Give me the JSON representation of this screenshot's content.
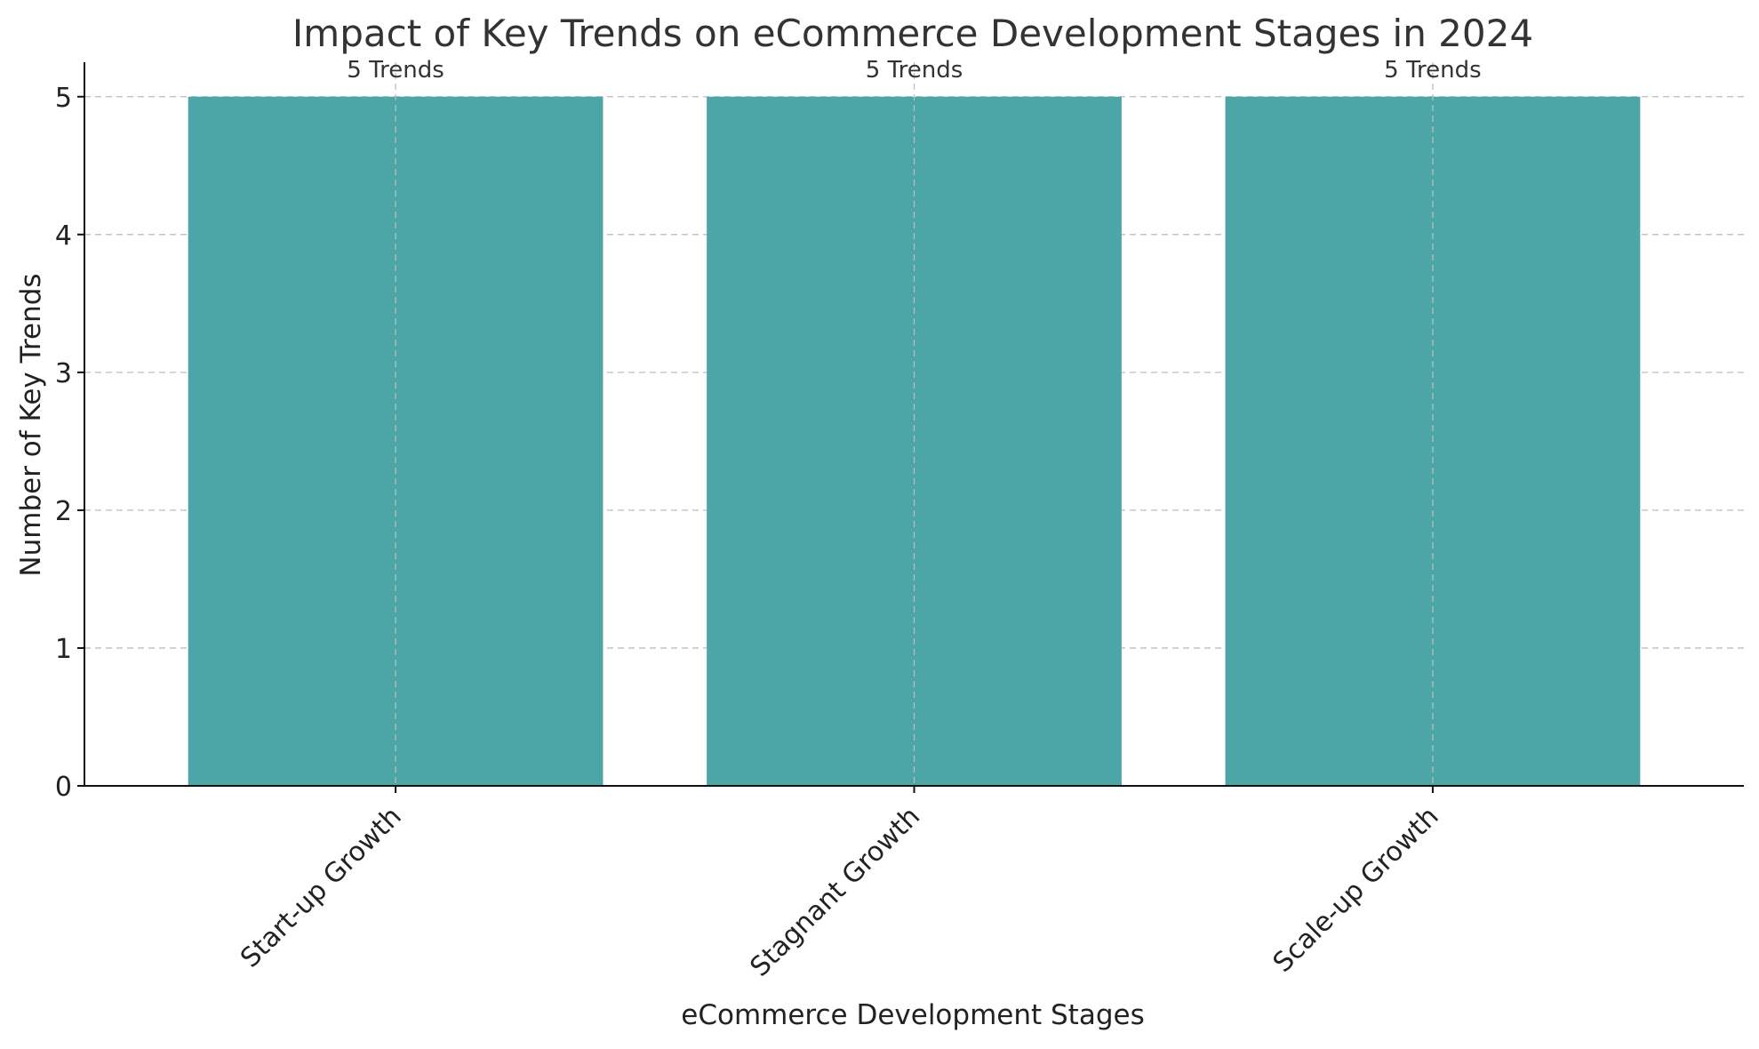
{
  "chart_data": {
    "type": "bar",
    "title": "Impact of Key Trends on eCommerce Development Stages in 2024",
    "xlabel": "eCommerce Development Stages",
    "ylabel": "Number of Key Trends",
    "categories": [
      "Start-up Growth",
      "Stagnant Growth",
      "Scale-up Growth"
    ],
    "values": [
      5,
      5,
      5
    ],
    "data_labels": [
      "5 Trends",
      "5 Trends",
      "5 Trends"
    ],
    "ylim": [
      0,
      5.25
    ],
    "yticks": [
      0,
      1,
      2,
      3,
      4,
      5
    ],
    "ytick_labels": [
      "0",
      "1",
      "2",
      "3",
      "4",
      "5"
    ],
    "grid": true,
    "legend": "none",
    "bar_color": "#4ca5a6"
  }
}
